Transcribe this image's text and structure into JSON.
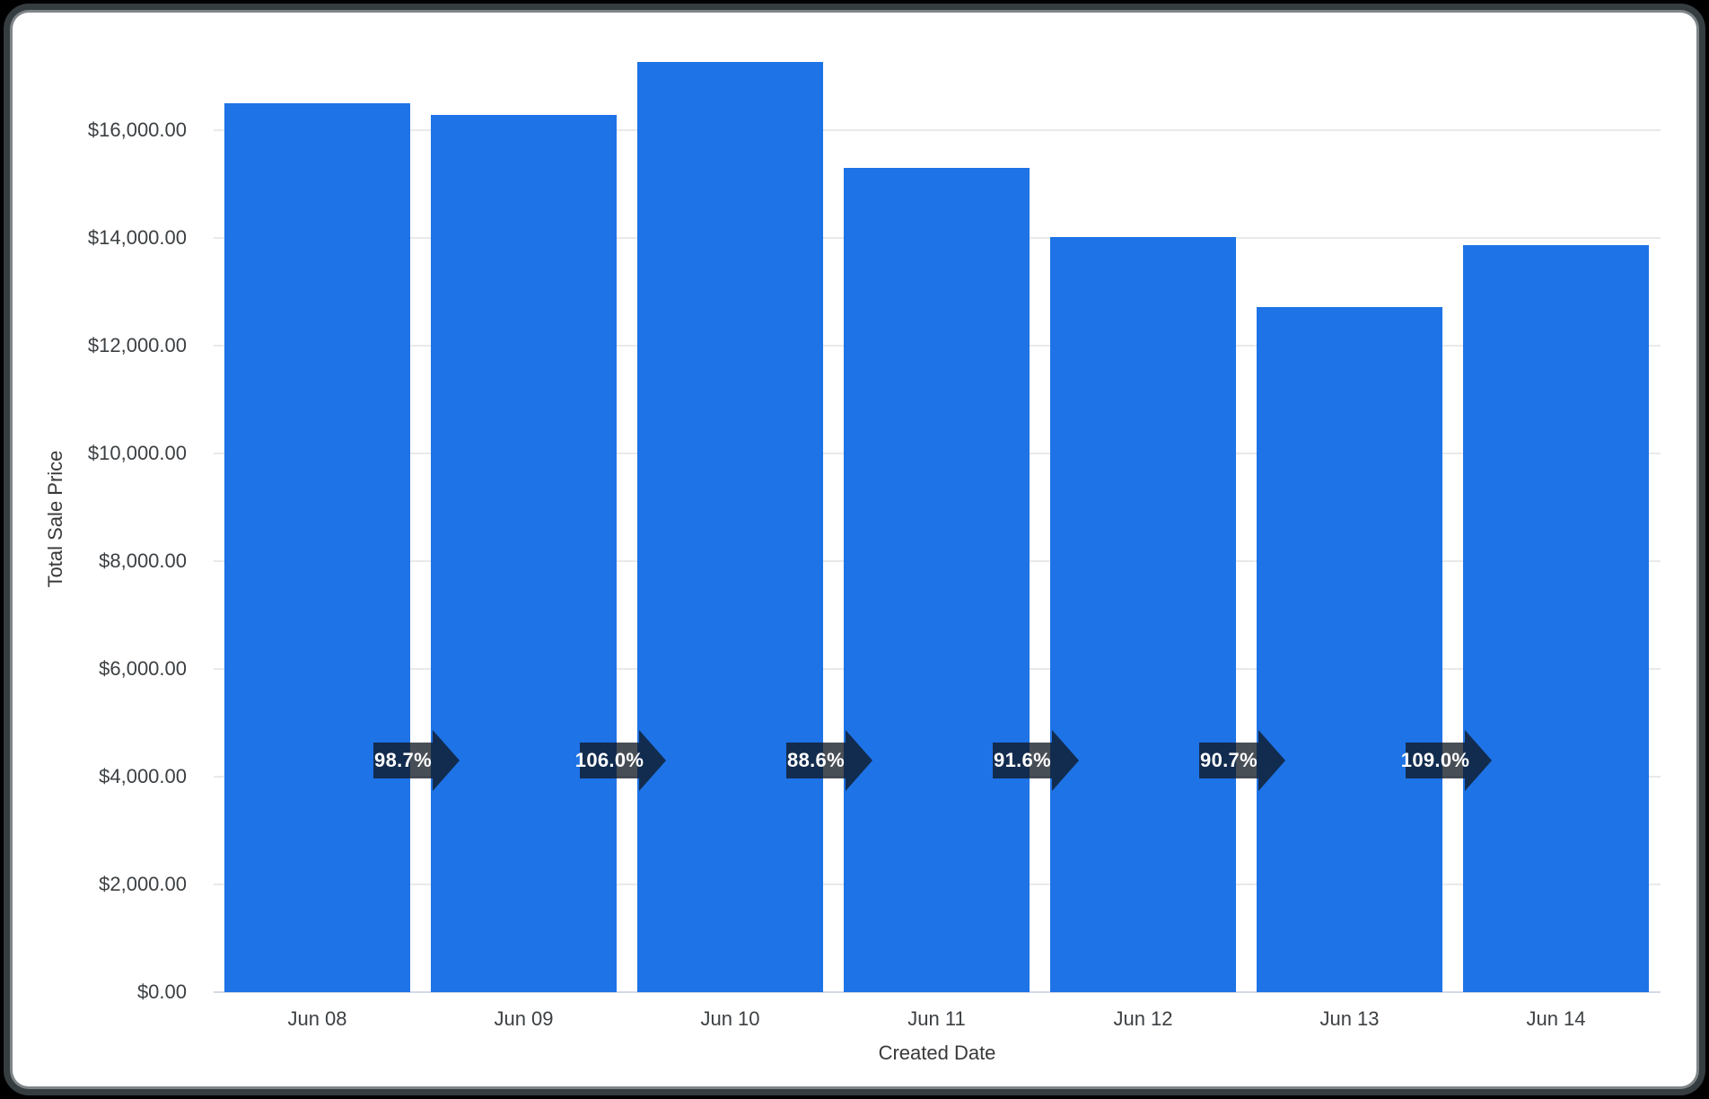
{
  "chart_data": {
    "type": "bar",
    "title": "",
    "xlabel": "Created Date",
    "ylabel": "Total Sale Price",
    "categories": [
      "Jun 08",
      "Jun 09",
      "Jun 10",
      "Jun 11",
      "Jun 12",
      "Jun 13",
      "Jun 14"
    ],
    "values": [
      16500,
      16290,
      17270,
      15300,
      14020,
      12715,
      13860
    ],
    "series_name": "Total Sale Price",
    "y_ticks": [
      "$0.00",
      "$2,000.00",
      "$4,000.00",
      "$6,000.00",
      "$8,000.00",
      "$10,000.00",
      "$12,000.00",
      "$14,000.00",
      "$16,000.00"
    ],
    "y_tick_values": [
      0,
      2000,
      4000,
      6000,
      8000,
      10000,
      12000,
      14000,
      16000
    ],
    "ylim": [
      0,
      17330
    ],
    "grid": "horizontal-only",
    "legend_position": "none",
    "period_change_arrows": {
      "labels": [
        "98.7%",
        "106.0%",
        "88.6%",
        "91.6%",
        "90.7%",
        "109.0%"
      ],
      "shape": "right-arrow",
      "fill": "rgba(14,22,32,0.76)",
      "text_color": "#ffffff"
    },
    "colors": {
      "bar": "#1e73e6",
      "grid": "#e9e9e9",
      "baseline": "#d3d9e6",
      "axis_text": "#3c4043",
      "axis_title_text": "#38393b",
      "card_background": "#ffffff",
      "page_background": "#000000",
      "card_border_dark": "#363d41",
      "card_border_light": "#7e8487"
    }
  }
}
